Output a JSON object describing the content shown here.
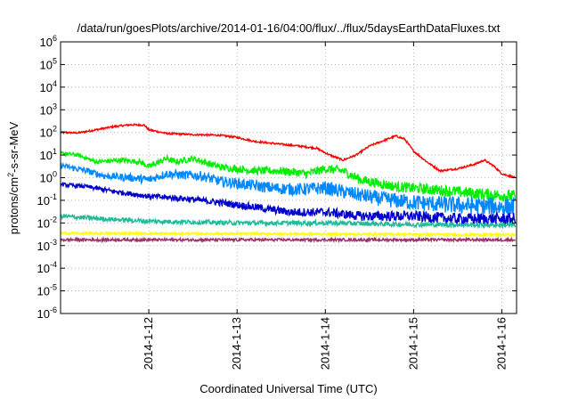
{
  "chart_data": {
    "type": "line",
    "title": "/data/run/goesPlots/archive/2014-01-16/04:00/flux/../flux/5daysEarthDataFluxes.txt",
    "xlabel": "Coordinated Universal Time (UTC)",
    "ylabel": {
      "base": "protons/cm",
      "sup": "2",
      "rest": "-s-sr-MeV"
    },
    "x_range": [
      "2014-01-11 00:00",
      "2014-01-16 04:00"
    ],
    "x_ticks": [
      "2014-1-12",
      "2014-1-13",
      "2014-1-14",
      "2014-1-15",
      "2014-1-16"
    ],
    "y_scale": "log",
    "y_range": [
      1e-06,
      1000000.0
    ],
    "y_ticks": [
      {
        "base": "10",
        "exp": "6"
      },
      {
        "base": "10",
        "exp": "5"
      },
      {
        "base": "10",
        "exp": "4"
      },
      {
        "base": "10",
        "exp": "3"
      },
      {
        "base": "10",
        "exp": "2"
      },
      {
        "base": "10",
        "exp": "1"
      },
      {
        "base": "10",
        "exp": "0"
      },
      {
        "base": "10",
        "exp": "-1"
      },
      {
        "base": "10",
        "exp": "-2"
      },
      {
        "base": "10",
        "exp": "-3"
      },
      {
        "base": "10",
        "exp": "-4"
      },
      {
        "base": "10",
        "exp": "-5"
      },
      {
        "base": "10",
        "exp": "-6"
      }
    ],
    "grid": true,
    "series": [
      {
        "color": "#ff0000",
        "noise": 0.04,
        "points": [
          [
            0,
            100
          ],
          [
            0.2,
            95
          ],
          [
            0.4,
            130
          ],
          [
            0.6,
            180
          ],
          [
            0.8,
            220
          ],
          [
            0.95,
            210
          ],
          [
            1.0,
            130
          ],
          [
            1.2,
            90
          ],
          [
            1.5,
            80
          ],
          [
            1.8,
            75
          ],
          [
            2.0,
            60
          ],
          [
            2.2,
            40
          ],
          [
            2.5,
            30
          ],
          [
            2.7,
            25
          ],
          [
            2.9,
            20
          ],
          [
            3.05,
            10
          ],
          [
            3.2,
            6
          ],
          [
            3.35,
            10
          ],
          [
            3.5,
            25
          ],
          [
            3.7,
            50
          ],
          [
            3.8,
            70
          ],
          [
            3.9,
            50
          ],
          [
            4.0,
            15
          ],
          [
            4.15,
            5
          ],
          [
            4.3,
            2
          ],
          [
            4.5,
            2.5
          ],
          [
            4.7,
            4
          ],
          [
            4.8,
            6
          ],
          [
            4.9,
            3.5
          ],
          [
            5.0,
            1.5
          ],
          [
            5.15,
            1
          ]
        ]
      },
      {
        "color": "#00ee00",
        "noise": 0.08,
        "points": [
          [
            0,
            12
          ],
          [
            0.2,
            10
          ],
          [
            0.4,
            5
          ],
          [
            0.7,
            6
          ],
          [
            0.9,
            5
          ],
          [
            1.0,
            3
          ],
          [
            1.2,
            7
          ],
          [
            1.3,
            5
          ],
          [
            1.5,
            7
          ],
          [
            1.8,
            3
          ],
          [
            2.2,
            2
          ],
          [
            2.5,
            2
          ],
          [
            2.8,
            1.5
          ],
          [
            3.0,
            2.5
          ],
          [
            3.2,
            2
          ],
          [
            3.4,
            0.8
          ],
          [
            3.8,
            0.4
          ],
          [
            4.2,
            0.3
          ],
          [
            4.7,
            0.2
          ],
          [
            5.15,
            0.15
          ]
        ]
      },
      {
        "color": "#0088ff",
        "noise": 0.12,
        "points": [
          [
            0,
            3.5
          ],
          [
            0.3,
            2
          ],
          [
            0.5,
            1.2
          ],
          [
            0.8,
            1.0
          ],
          [
            1.0,
            0.8
          ],
          [
            1.2,
            1.5
          ],
          [
            1.4,
            1.3
          ],
          [
            1.6,
            1.2
          ],
          [
            1.8,
            0.7
          ],
          [
            2.1,
            0.5
          ],
          [
            2.4,
            0.35
          ],
          [
            2.7,
            0.3
          ],
          [
            3.0,
            0.35
          ],
          [
            3.3,
            0.2
          ],
          [
            3.6,
            0.12
          ],
          [
            4.0,
            0.08
          ],
          [
            4.5,
            0.06
          ],
          [
            5.15,
            0.05
          ]
        ]
      },
      {
        "color": "#0000cc",
        "noise": 0.08,
        "points": [
          [
            0,
            0.5
          ],
          [
            0.3,
            0.4
          ],
          [
            0.6,
            0.25
          ],
          [
            1.0,
            0.15
          ],
          [
            1.4,
            0.12
          ],
          [
            1.8,
            0.08
          ],
          [
            2.2,
            0.05
          ],
          [
            2.6,
            0.03
          ],
          [
            3.0,
            0.03
          ],
          [
            3.4,
            0.02
          ],
          [
            4.0,
            0.02
          ],
          [
            4.5,
            0.015
          ],
          [
            5.15,
            0.015
          ]
        ]
      },
      {
        "color": "#22bb99",
        "noise": 0.1,
        "points": [
          [
            0,
            0.02
          ],
          [
            0.5,
            0.015
          ],
          [
            1.0,
            0.012
          ],
          [
            2.0,
            0.01
          ],
          [
            3.0,
            0.01
          ],
          [
            4.0,
            0.0085
          ],
          [
            5.15,
            0.008
          ]
        ]
      },
      {
        "color": "#ffff00",
        "noise": 0.05,
        "points": [
          [
            0,
            0.0035
          ],
          [
            2.5,
            0.0033
          ],
          [
            5.15,
            0.003
          ]
        ]
      },
      {
        "color": "#993366",
        "noise": 0.06,
        "points": [
          [
            0,
            0.0018
          ],
          [
            2.5,
            0.0018
          ],
          [
            5.15,
            0.0018
          ]
        ]
      }
    ]
  }
}
